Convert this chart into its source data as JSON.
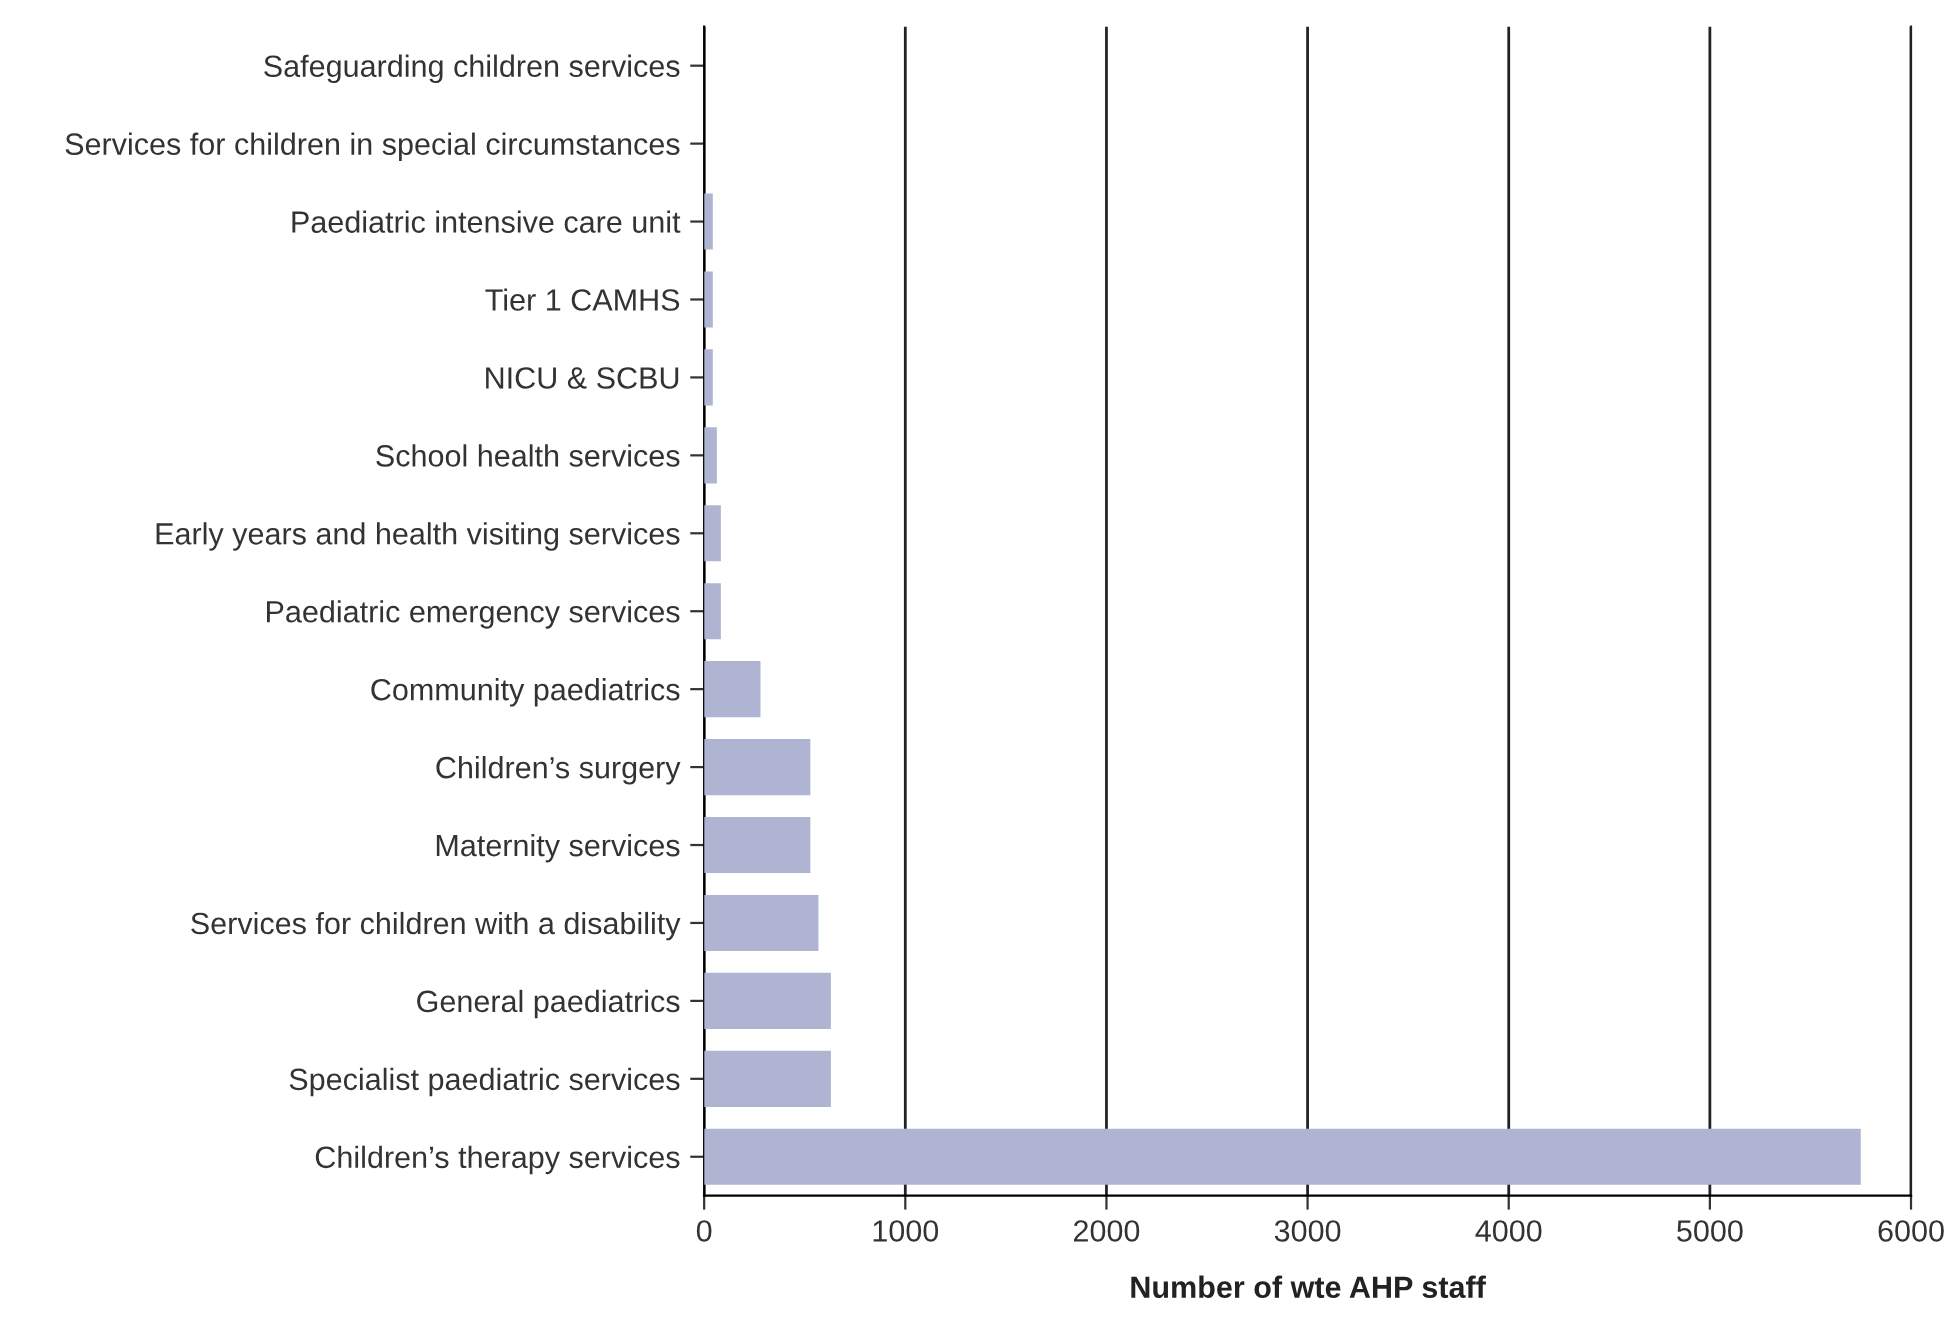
{
  "chart_data": {
    "type": "bar",
    "orientation": "horizontal",
    "xlabel": "Number of wte AHP staff",
    "categories": [
      "Safeguarding children services",
      "Services for children in special circumstances",
      "Paediatric intensive care unit",
      "Tier 1 CAMHS",
      "NICU & SCBU",
      "School health services",
      "Early years and health visiting services",
      "Paediatric emergency services",
      "Community paediatrics",
      "Children’s surgery",
      "Maternity services",
      "Services for children with a disability",
      "General paediatrics",
      "Specialist paediatric services",
      "Children’s therapy services"
    ],
    "values": [
      0,
      0,
      43,
      43,
      43,
      63,
      83,
      83,
      280,
      528,
      528,
      568,
      630,
      630,
      5750
    ],
    "color": "#aeb4d2",
    "xlim": [
      0,
      6000
    ],
    "xticks": [
      0,
      1000,
      2000,
      3000,
      4000,
      5000,
      6000
    ],
    "grid": "x"
  }
}
